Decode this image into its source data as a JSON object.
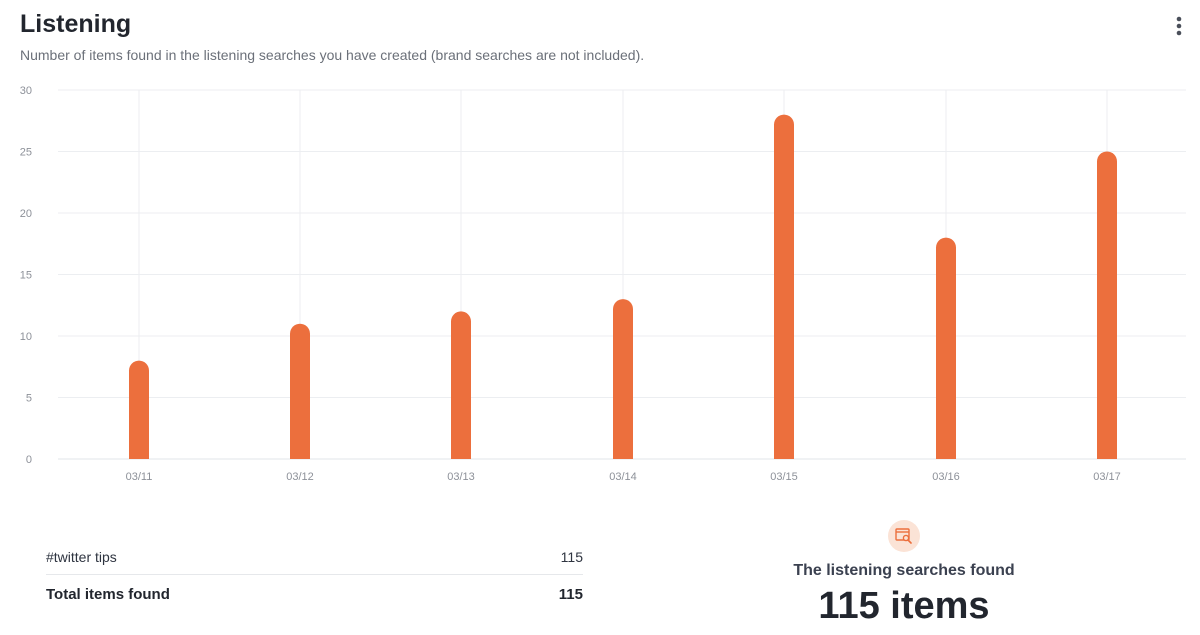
{
  "header": {
    "title": "Listening",
    "subtitle": "Number of items found in the listening searches you have created (brand searches are not included).",
    "menu_icon": "kebab-menu-icon"
  },
  "chart_data": {
    "type": "bar",
    "categories": [
      "03/11",
      "03/12",
      "03/13",
      "03/14",
      "03/15",
      "03/16",
      "03/17"
    ],
    "series": [
      {
        "values": [
          8,
          11,
          12,
          13,
          28,
          18,
          25
        ],
        "color": "#ec6f3d"
      }
    ],
    "title": "",
    "xlabel": "",
    "ylabel": "",
    "ylim": [
      0,
      30
    ],
    "yticks": [
      0,
      5,
      10,
      15,
      20,
      25,
      30
    ],
    "grid": true
  },
  "summary": {
    "rows": [
      {
        "label": "#twitter tips",
        "value": "115"
      }
    ],
    "total_label": "Total items found",
    "total_value": "115"
  },
  "found": {
    "icon": "search-window-icon",
    "text": "The listening searches found",
    "count": "115 items"
  },
  "colors": {
    "accent": "#ec6f3d",
    "accent_soft": "#fbe3d6",
    "grid": "#eceef1",
    "axis_text": "#8d9199"
  }
}
